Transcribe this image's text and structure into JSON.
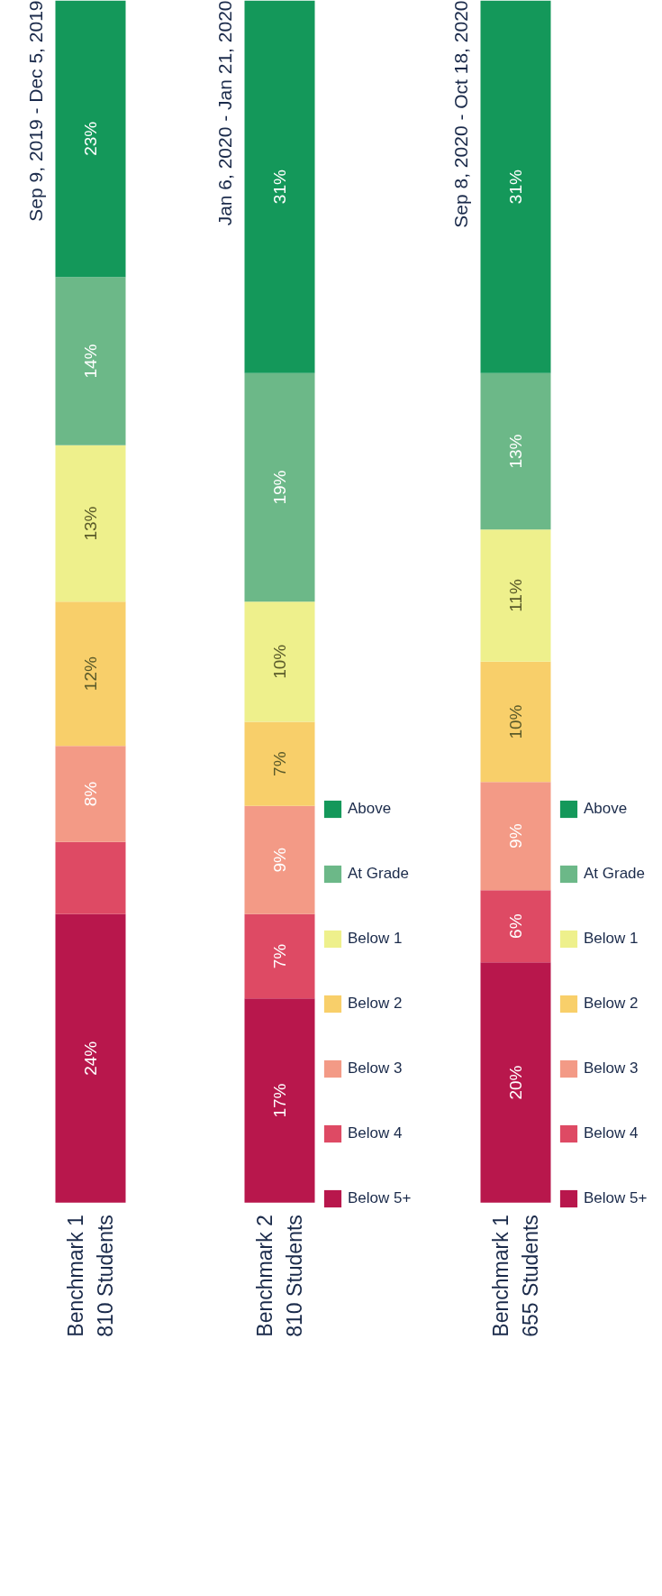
{
  "chart_data": [
    {
      "type": "bar",
      "stacked": true,
      "title": "Sep 9, 2019 - Dec 5, 2019",
      "categories": [
        "Benchmark 1\n810 Students"
      ],
      "series": [
        {
          "color": "#b8174c",
          "values": [
            24
          ],
          "value_labels": [
            "24%"
          ]
        },
        {
          "color": "#de4a64",
          "values": [
            6
          ],
          "value_labels": [
            null
          ]
        },
        {
          "color": "#f39a86",
          "values": [
            8
          ],
          "value_labels": [
            "8%"
          ]
        },
        {
          "color": "#f8cf6a",
          "values": [
            12
          ],
          "value_labels": [
            "12%"
          ]
        },
        {
          "color": "#eef08c",
          "values": [
            13
          ],
          "value_labels": [
            "13%"
          ]
        },
        {
          "color": "#6cb888",
          "values": [
            14
          ],
          "value_labels": [
            "14%"
          ]
        },
        {
          "color": "#14985a",
          "values": [
            23
          ],
          "value_labels": [
            "23%"
          ]
        }
      ]
    },
    {
      "type": "bar",
      "stacked": true,
      "title": "Jan 6, 2020 - Jan 21, 2020",
      "categories": [
        "Benchmark 2\n810 Students"
      ],
      "legend": "right",
      "series": [
        {
          "name": "Below 5+",
          "color": "#b8174c",
          "values": [
            17
          ],
          "value_labels": [
            "17%"
          ]
        },
        {
          "name": "Below 4",
          "color": "#de4a64",
          "values": [
            7
          ],
          "value_labels": [
            "7%"
          ]
        },
        {
          "name": "Below 3",
          "color": "#f39a86",
          "values": [
            9
          ],
          "value_labels": [
            "9%"
          ]
        },
        {
          "name": "Below 2",
          "color": "#f8cf6a",
          "values": [
            7
          ],
          "value_labels": [
            "7%"
          ]
        },
        {
          "name": "Below 1",
          "color": "#eef08c",
          "values": [
            10
          ],
          "value_labels": [
            "10%"
          ]
        },
        {
          "name": "At Grade",
          "color": "#6cb888",
          "values": [
            19
          ],
          "value_labels": [
            "19%"
          ]
        },
        {
          "name": "Above",
          "color": "#14985a",
          "values": [
            31
          ],
          "value_labels": [
            "31%"
          ]
        }
      ]
    },
    {
      "type": "bar",
      "stacked": true,
      "title": "Sep 8, 2020 - Oct 18, 2020",
      "categories": [
        "Benchmark 1\n655 Students"
      ],
      "legend": "right",
      "series": [
        {
          "name": "Below 5+",
          "color": "#b8174c",
          "values": [
            20
          ],
          "value_labels": [
            "20%"
          ]
        },
        {
          "name": "Below 4",
          "color": "#de4a64",
          "values": [
            6
          ],
          "value_labels": [
            "6%"
          ]
        },
        {
          "name": "Below 3",
          "color": "#f39a86",
          "values": [
            9
          ],
          "value_labels": [
            "9%"
          ]
        },
        {
          "name": "Below 2",
          "color": "#f8cf6a",
          "values": [
            10
          ],
          "value_labels": [
            "10%"
          ]
        },
        {
          "name": "Below 1",
          "color": "#eef08c",
          "values": [
            11
          ],
          "value_labels": [
            "11%"
          ]
        },
        {
          "name": "At Grade",
          "color": "#6cb888",
          "values": [
            13
          ],
          "value_labels": [
            "13%"
          ]
        },
        {
          "name": "Above",
          "color": "#14985a",
          "values": [
            31
          ],
          "value_labels": [
            "31%"
          ]
        }
      ]
    }
  ]
}
